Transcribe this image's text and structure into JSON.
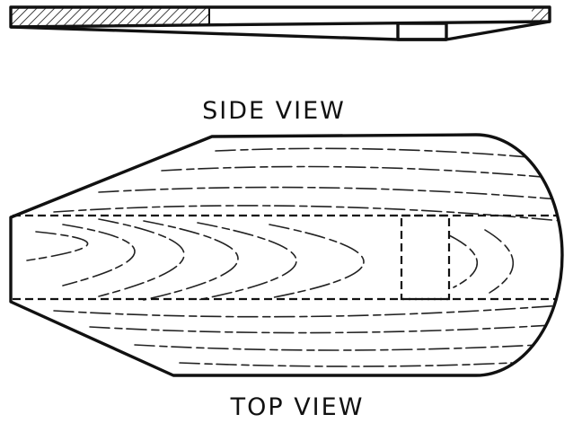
{
  "labels": {
    "side_view": "SIDE VIEW",
    "top_view": "TOP VIEW"
  },
  "colors": {
    "ink": "#111111",
    "paper": "#ffffff"
  }
}
